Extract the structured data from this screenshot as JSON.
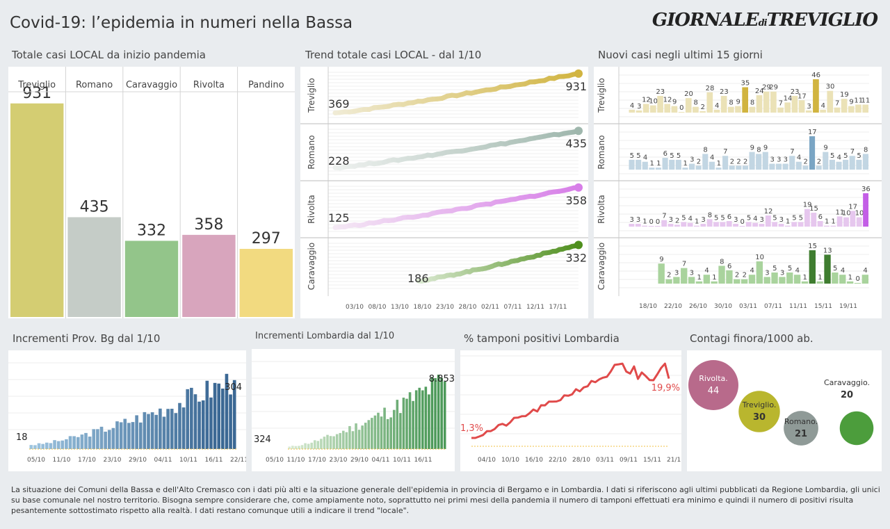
{
  "header": {
    "title": "Covid-19: l’epidemia  in numeri nella Bassa",
    "logo_main": "GIORNALE",
    "logo_di": "di",
    "logo_end": "TREVIGLIO"
  },
  "sections": {
    "totale": "Totale casi  LOCAL da inizio pandemia",
    "trend": "Trend totale casi  LOCAL - dal 1/10",
    "nuovi": "Nuovi casi negli ultimi 15 giorni",
    "prov": "Incrementi Prov. Bg dal 1/10",
    "lomb": "Incrementi Lombardia dal 1/10",
    "tamponi": "% tamponi positivi Lombardia",
    "contagi": "Contagi finora/1000 ab."
  },
  "footer": "La situazione dei Comuni della Bassa e dell'Alto Cremasco con i dati più alti e la situazione generale dell'epidemia in provincia di Bergamo e in Lombardia.  I dati si riferiscono agli ultimi pubblicati da Regione Lombardia, gli unici su base comunale nel  nostro territorio.  Bisogna sempre considerare che, come ampiamente noto, soprattutto nei primi mesi della pandemia il numero di tamponi effettuati era minimo e quindi il numero di positivi risulta pesantemente sottostimato rispetto alla realtà. I dati restano comunque utili a indicare il trend \"locale\".",
  "chart_data": [
    {
      "id": "totale",
      "type": "bar",
      "categories": [
        "Treviglio",
        "Romano",
        "Caravaggio",
        "Rivolta",
        "Pandino"
      ],
      "values": [
        931,
        435,
        332,
        358,
        297
      ],
      "colors": [
        "#d4cd72",
        "#c5ccc7",
        "#93c58a",
        "#d8a5bd",
        "#f2da80"
      ],
      "ylim": [
        0,
        1000
      ]
    },
    {
      "id": "trend",
      "type": "line",
      "x_ticks": [
        "03/10",
        "08/10",
        "13/10",
        "18/10",
        "23/10",
        "28/10",
        "02/11",
        "07/11",
        "12/11",
        "17/11"
      ],
      "series": [
        {
          "name": "Treviglio",
          "start": 369,
          "end": 931,
          "start_label": "369",
          "end_label": "931",
          "color": "#d1b440",
          "light": "#f0ebd5"
        },
        {
          "name": "Romano",
          "start": 228,
          "end": 435,
          "start_label": "228",
          "end_label": "435",
          "color": "#9fb7ad",
          "light": "#eef1ef"
        },
        {
          "name": "Rivolta",
          "start": 125,
          "end": 358,
          "start_label": "125",
          "end_label": "358",
          "color": "#d77ee8",
          "light": "#f4e8f4"
        },
        {
          "name": "Caravaggio",
          "start": 186,
          "end": 332,
          "start_label": "186",
          "end_label": "332",
          "color": "#4f8f1e",
          "light": "#dbe9d2"
        }
      ]
    },
    {
      "id": "nuovi",
      "type": "bar",
      "x_ticks": [
        "18/10",
        "22/10",
        "26/10",
        "30/10",
        "03/11",
        "07/11",
        "11/11",
        "15/11",
        "19/11"
      ],
      "series": [
        {
          "name": "Treviglio",
          "color": "#d1b440",
          "light": "#ebe2b7",
          "values": [
            4,
            3,
            12,
            10,
            23,
            12,
            9,
            0,
            20,
            8,
            2,
            28,
            4,
            23,
            8,
            9,
            35,
            8,
            24,
            29,
            29,
            7,
            14,
            23,
            17,
            3,
            46,
            4,
            30,
            7,
            19,
            9,
            11,
            11
          ]
        },
        {
          "name": "Romano",
          "color": "#7aa5c4",
          "light": "#c2d6e3",
          "values": [
            5,
            5,
            4,
            1,
            1,
            6,
            5,
            5,
            1,
            3,
            2,
            8,
            4,
            1,
            7,
            2,
            2,
            2,
            9,
            8,
            9,
            3,
            3,
            3,
            7,
            4,
            2,
            17,
            2,
            9,
            5,
            4,
            5,
            7,
            5,
            8
          ]
        },
        {
          "name": "Rivolta",
          "color": "#c35ee6",
          "light": "#e6c7ee",
          "values": [
            3,
            3,
            1,
            0,
            0,
            7,
            3,
            2,
            5,
            4,
            1,
            3,
            8,
            5,
            5,
            6,
            3,
            0,
            5,
            4,
            3,
            12,
            5,
            3,
            1,
            5,
            5,
            19,
            15,
            6,
            1,
            1,
            11,
            10,
            17,
            10,
            36
          ]
        },
        {
          "name": "Caravaggio",
          "color": "#3f7d30",
          "light": "#a9d39d",
          "values": [
            9,
            2,
            3,
            7,
            3,
            1,
            4,
            1,
            8,
            6,
            2,
            2,
            4,
            10,
            3,
            5,
            3,
            5,
            4,
            1,
            15,
            1,
            13,
            5,
            4,
            1,
            0,
            4
          ]
        }
      ]
    },
    {
      "id": "prov",
      "type": "bar",
      "x_ticks": [
        "05/10",
        "11/10",
        "17/10",
        "23/10",
        "29/10",
        "04/11",
        "10/11",
        "16/11",
        "22/11"
      ],
      "first_label": "18",
      "last_label": "304",
      "first": 18,
      "last": 304,
      "color": "#3b6894",
      "light": "#9dc4df"
    },
    {
      "id": "lomb",
      "type": "bar",
      "x_ticks": [
        "05/10",
        "11/10",
        "17/10",
        "23/10",
        "29/10",
        "04/11",
        "10/11",
        "16/11"
      ],
      "first_label": "324",
      "last_label": "8.853",
      "first": 324,
      "last": 8853,
      "color": "#4d9a5a",
      "light": "#d8ead2"
    },
    {
      "id": "tamponi",
      "type": "line",
      "x_ticks": [
        "04/10",
        "10/10",
        "16/10",
        "22/10",
        "28/10",
        "03/11",
        "09/11",
        "15/11",
        "21/11"
      ],
      "first_label": "1,3%",
      "last_label": "19,9%",
      "first": 1.3,
      "last": 19.9,
      "color": "#e04a4a"
    },
    {
      "id": "contagi",
      "type": "scatter",
      "items": [
        {
          "name": "Rivolta.",
          "value": 44,
          "value_label": "44",
          "color": "#b86a8b"
        },
        {
          "name": "Treviglio.",
          "value": 30,
          "value_label": "30",
          "color": "#b9b62e"
        },
        {
          "name": "Romano.",
          "value": 21,
          "value_label": "21",
          "color": "#8f9a97"
        },
        {
          "name": "Caravaggio.",
          "value": 20,
          "value_label": "20",
          "color": "#4c9d3c"
        }
      ]
    }
  ]
}
